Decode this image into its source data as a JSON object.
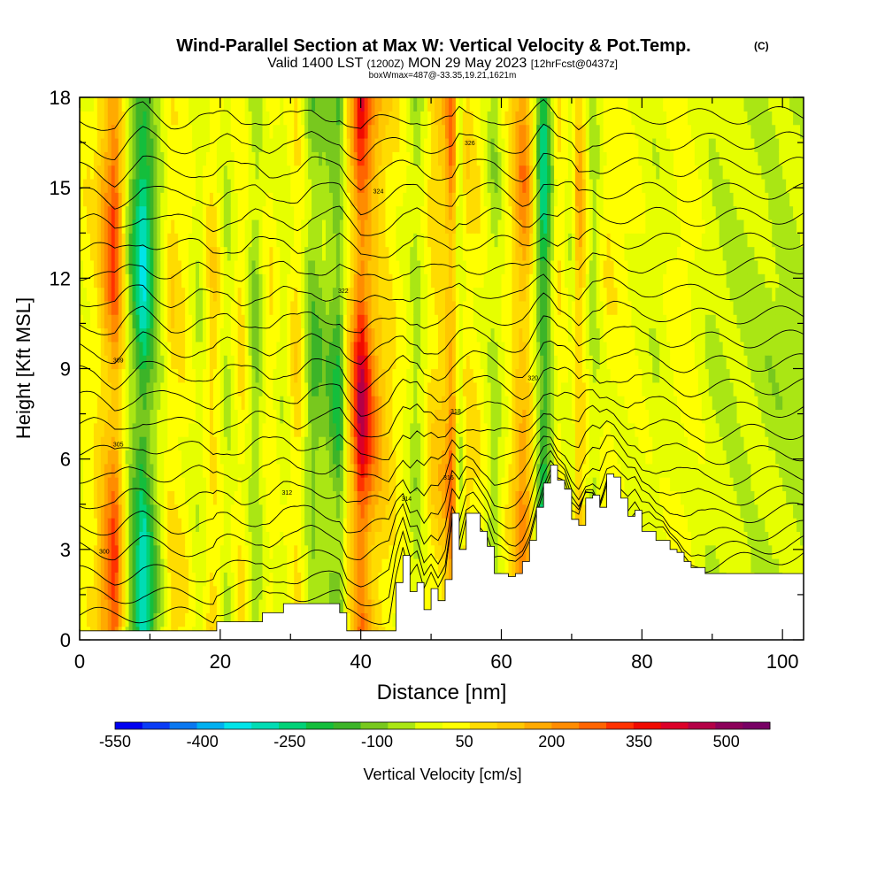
{
  "chart_data": {
    "type": "heatmap",
    "title": "Wind-Parallel Section at Max W: Vertical Velocity & Pot.Temp.",
    "title_mark": "(C)",
    "subtitle_valid_prefix": "Valid 1400 LST",
    "subtitle_valid_zulu": "(1200Z)",
    "subtitle_valid_date": "MON 29 May 2023",
    "subtitle_forecast": "[12hrFcst@0437z]",
    "subtitle_box": "boxWmax=487@-33.35,19.21,1621m",
    "xlabel": "Distance [nm]",
    "ylabel": "Height [Kft MSL]",
    "xlim": [
      0,
      103
    ],
    "ylim": [
      0,
      18
    ],
    "x_ticks": [
      0,
      20,
      40,
      60,
      80,
      100
    ],
    "y_ticks": [
      0,
      3,
      6,
      9,
      12,
      15,
      18
    ],
    "colorbar": {
      "label": "Vertical Velocity [cm/s]",
      "tick_labels": [
        "-550",
        "-400",
        "-250",
        "-100",
        "50",
        "200",
        "350",
        "500"
      ],
      "tick_values": [
        -550,
        -400,
        -250,
        -100,
        50,
        200,
        350,
        500
      ],
      "range": [
        -550,
        575
      ],
      "colors": [
        "#0000f0",
        "#0a3cf5",
        "#0a78f0",
        "#00b0f0",
        "#00e4e8",
        "#00dcb4",
        "#00d278",
        "#14be3c",
        "#3cb428",
        "#78c81e",
        "#aae614",
        "#e6ff00",
        "#ffff00",
        "#ffdc00",
        "#ffc800",
        "#ffaa00",
        "#ff8c00",
        "#ff6400",
        "#ff3200",
        "#f00a00",
        "#dc0028",
        "#b40046",
        "#8c005a",
        "#780064"
      ]
    },
    "w_columns": {
      "x": [
        0,
        2,
        4,
        5,
        7,
        9,
        11,
        13,
        15,
        17,
        19,
        21,
        23,
        25,
        27,
        29,
        31,
        33,
        35,
        37,
        38,
        40,
        42,
        44,
        46,
        48,
        50,
        52,
        53,
        54,
        55,
        57,
        59,
        61,
        63,
        64,
        66,
        68,
        70,
        71,
        73,
        75,
        78,
        82,
        86,
        90,
        95,
        100,
        103
      ],
      "w": [
        30,
        60,
        250,
        350,
        -80,
        -350,
        -100,
        100,
        60,
        -40,
        120,
        -60,
        90,
        -120,
        70,
        -30,
        110,
        -150,
        -100,
        -200,
        60,
        480,
        220,
        100,
        30,
        -80,
        100,
        160,
        300,
        -60,
        100,
        50,
        -80,
        60,
        250,
        160,
        -300,
        80,
        -30,
        200,
        -80,
        60,
        30,
        -30,
        50,
        -40,
        -50,
        -70,
        -60
      ]
    },
    "terrain": {
      "x": [
        0,
        19,
        19.5,
        25,
        26,
        27,
        29,
        30,
        37,
        38,
        44,
        45,
        46,
        47,
        48,
        49,
        50,
        51,
        52,
        53,
        54,
        55,
        56,
        57,
        58,
        59,
        60,
        61,
        62,
        63,
        64,
        65,
        66,
        67,
        68,
        69,
        70,
        71,
        72,
        73,
        74,
        75,
        76,
        77,
        78,
        79,
        80,
        81,
        82,
        83,
        84,
        85,
        86,
        87,
        88,
        89,
        90,
        103
      ],
      "h": [
        0.3,
        0.3,
        0.6,
        0.6,
        0.9,
        0.9,
        1.2,
        1.2,
        0.9,
        0.3,
        0.3,
        1.9,
        2.8,
        1.6,
        1.9,
        1.0,
        1.7,
        1.3,
        2.0,
        4.2,
        3.0,
        4.2,
        4.2,
        3.6,
        3.1,
        2.2,
        2.2,
        2.1,
        2.2,
        2.6,
        3.3,
        4.4,
        5.2,
        5.8,
        5.3,
        5.0,
        4.0,
        3.8,
        4.7,
        4.8,
        4.4,
        5.5,
        5.4,
        4.7,
        4.1,
        4.3,
        3.6,
        3.6,
        3.3,
        3.3,
        3.0,
        2.9,
        2.6,
        2.4,
        2.4,
        2.2,
        2.2,
        2.6
      ]
    },
    "contour_baselines": [
      0.55,
      1.25,
      2.0,
      2.9,
      3.7,
      4.55,
      5.4,
      6.25,
      7.1,
      7.95,
      8.8,
      9.65,
      10.5,
      11.35,
      12.2,
      13.05,
      13.9,
      14.75,
      15.6,
      16.45,
      17.3
    ],
    "contour_labels": [
      {
        "x": 3.5,
        "y": 2.95,
        "text": "300"
      },
      {
        "x": 5.5,
        "y": 6.5,
        "text": "305"
      },
      {
        "x": 5.5,
        "y": 9.3,
        "text": "309"
      },
      {
        "x": 29.5,
        "y": 4.9,
        "text": "312"
      },
      {
        "x": 46.5,
        "y": 4.7,
        "text": "314"
      },
      {
        "x": 52.5,
        "y": 5.4,
        "text": "316"
      },
      {
        "x": 53.5,
        "y": 7.6,
        "text": "318"
      },
      {
        "x": 64.5,
        "y": 8.7,
        "text": "320"
      },
      {
        "x": 37.5,
        "y": 11.6,
        "text": "322"
      },
      {
        "x": 42.5,
        "y": 14.9,
        "text": "324"
      },
      {
        "x": 55.5,
        "y": 16.5,
        "text": "326"
      }
    ]
  }
}
